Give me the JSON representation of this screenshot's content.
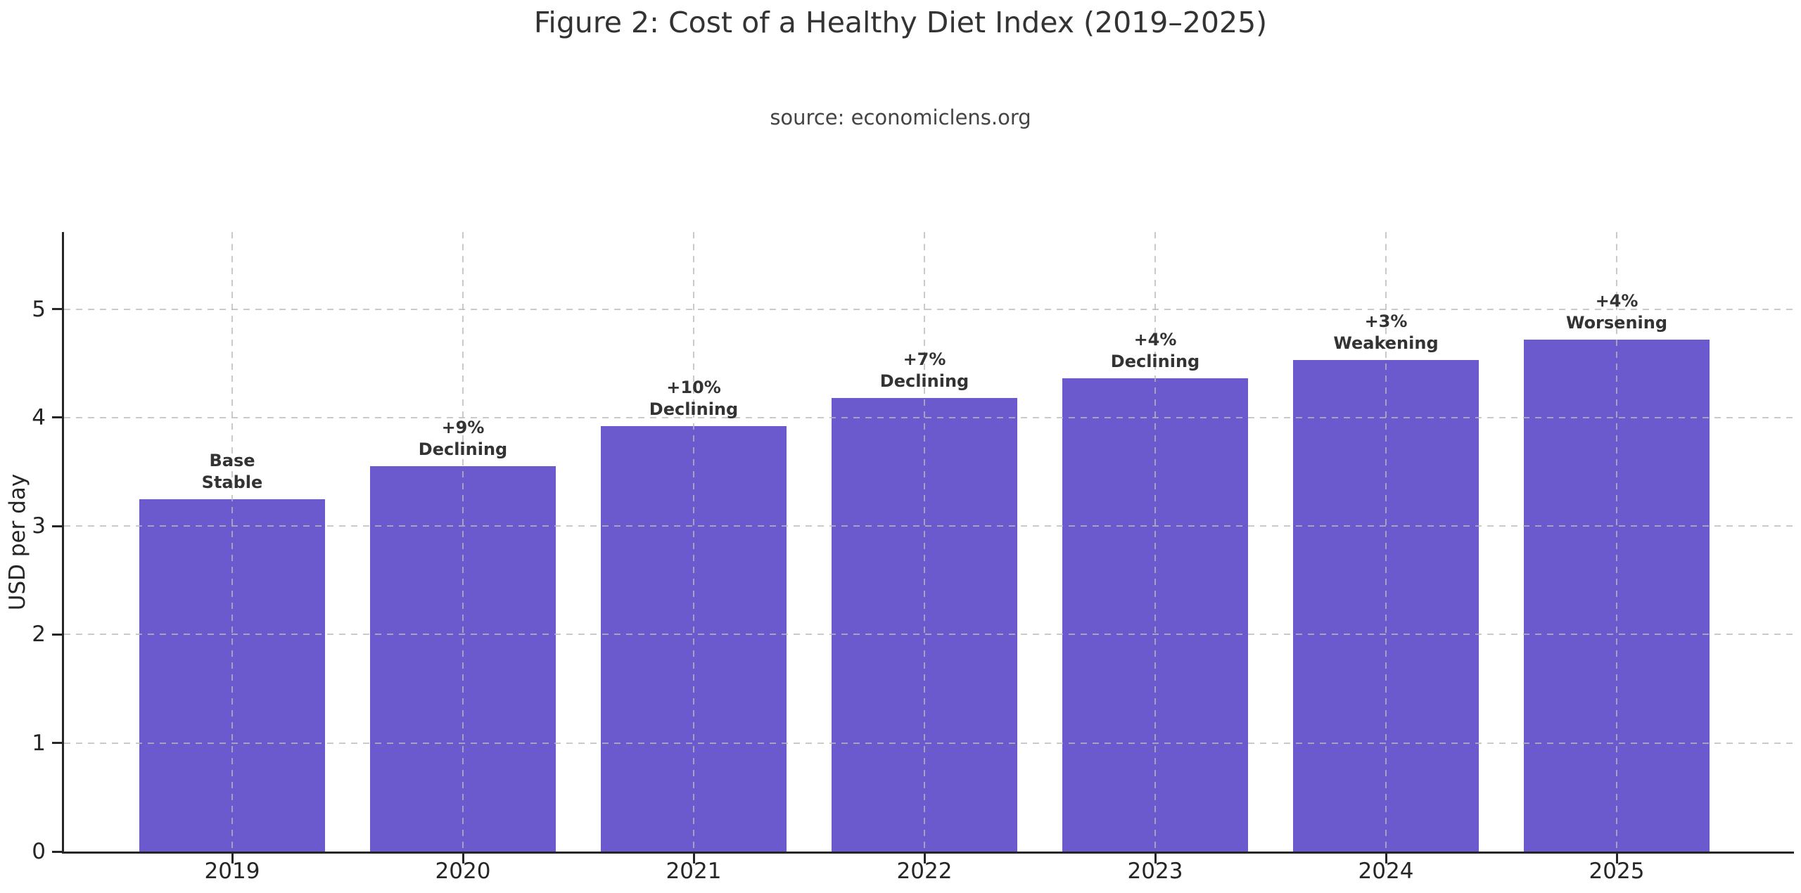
{
  "chart_data": {
    "type": "bar",
    "title": "Figure 2: Cost of a Healthy Diet Index (2019–2025)",
    "subtitle": "source: economiclens.org",
    "xlabel": "",
    "ylabel": "USD per day",
    "categories": [
      "2019",
      "2020",
      "2021",
      "2022",
      "2023",
      "2024",
      "2025"
    ],
    "values": [
      3.25,
      3.55,
      3.92,
      4.18,
      4.36,
      4.53,
      4.72
    ],
    "annotations": [
      {
        "line1": "Base",
        "line2": "Stable"
      },
      {
        "line1": "+9%",
        "line2": "Declining"
      },
      {
        "line1": "+10%",
        "line2": "Declining"
      },
      {
        "line1": "+7%",
        "line2": "Declining"
      },
      {
        "line1": "+4%",
        "line2": "Declining"
      },
      {
        "line1": "+3%",
        "line2": "Weakening"
      },
      {
        "line1": "+4%",
        "line2": "Worsening"
      }
    ],
    "yticks": [
      0,
      1,
      2,
      3,
      4,
      5
    ],
    "ylim": [
      0,
      5.71
    ],
    "grid": "dashed, horizontal at integer y-values and vertical at each bar center, drawn above bars",
    "legend_position": "none",
    "colors": {
      "bar": "#6A5ACD",
      "axis": "#262626",
      "grid": "#b9b9b9",
      "title_text": "#333333",
      "subtitle_text": "#444444",
      "annotation_text": "#333333"
    }
  }
}
